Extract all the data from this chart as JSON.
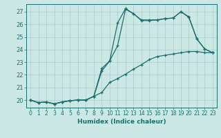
{
  "xlabel": "Humidex (Indice chaleur)",
  "background_color": "#cce8e4",
  "grid_color": "#aaccca",
  "line_color": "#1a6e6e",
  "xlim": [
    -0.5,
    23.5
  ],
  "ylim": [
    19.4,
    27.6
  ],
  "xticks": [
    0,
    1,
    2,
    3,
    4,
    5,
    6,
    7,
    8,
    9,
    10,
    11,
    12,
    13,
    14,
    15,
    16,
    17,
    18,
    19,
    20,
    21,
    22,
    23
  ],
  "yticks": [
    20,
    21,
    22,
    23,
    24,
    25,
    26,
    27
  ],
  "line1_x": [
    0,
    1,
    2,
    3,
    4,
    5,
    6,
    7,
    8,
    9,
    10,
    11,
    12,
    13,
    14,
    15,
    16,
    17,
    18,
    19,
    20,
    21,
    22,
    23
  ],
  "line1_y": [
    20.0,
    19.8,
    19.85,
    19.7,
    19.85,
    19.95,
    20.0,
    20.0,
    20.3,
    22.3,
    23.1,
    26.1,
    27.25,
    26.85,
    26.3,
    26.3,
    26.35,
    26.45,
    26.5,
    27.0,
    26.6,
    24.85,
    24.05,
    23.75
  ],
  "line2_x": [
    0,
    1,
    2,
    3,
    4,
    5,
    6,
    7,
    8,
    9,
    10,
    11,
    12,
    13,
    14,
    15,
    16,
    17,
    18,
    19,
    20,
    21,
    22,
    23
  ],
  "line2_y": [
    20.0,
    19.8,
    19.85,
    19.7,
    19.85,
    19.95,
    20.0,
    20.0,
    20.3,
    22.5,
    23.1,
    24.3,
    27.2,
    26.85,
    26.35,
    26.35,
    26.35,
    26.45,
    26.5,
    27.0,
    26.55,
    24.85,
    24.05,
    23.75
  ],
  "line3_x": [
    0,
    1,
    2,
    3,
    4,
    5,
    6,
    7,
    8,
    9,
    10,
    11,
    12,
    13,
    14,
    15,
    16,
    17,
    18,
    19,
    20,
    21,
    22,
    23
  ],
  "line3_y": [
    20.0,
    19.8,
    19.85,
    19.7,
    19.85,
    19.95,
    20.0,
    20.0,
    20.3,
    20.6,
    21.4,
    21.7,
    22.05,
    22.45,
    22.8,
    23.2,
    23.45,
    23.55,
    23.65,
    23.75,
    23.85,
    23.85,
    23.75,
    23.75
  ]
}
